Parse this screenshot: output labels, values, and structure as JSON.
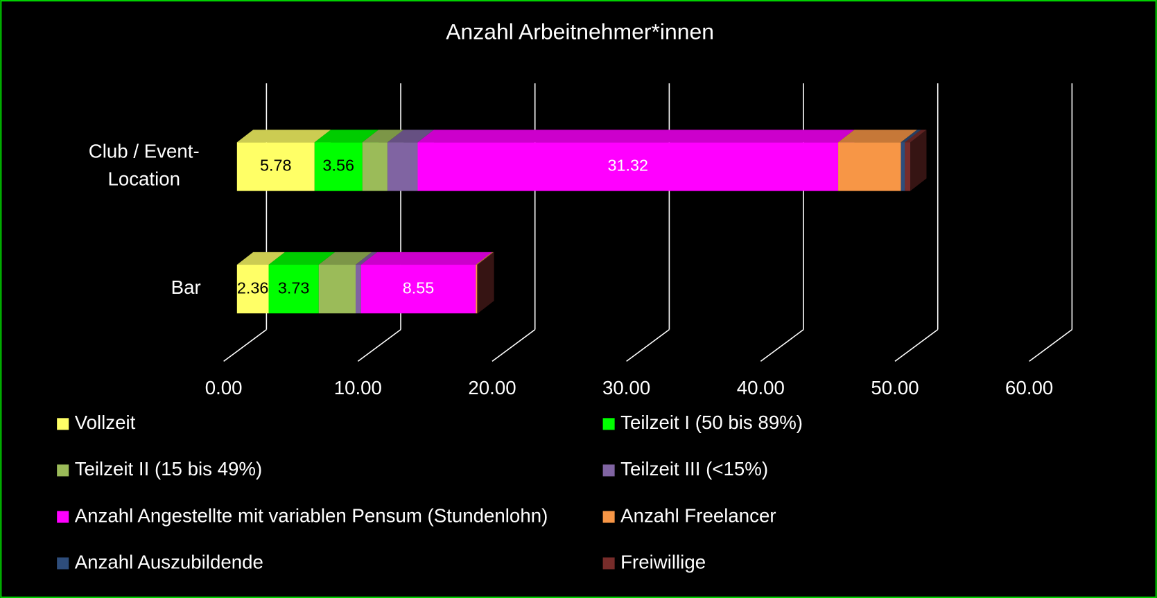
{
  "chart_data": {
    "type": "bar3d",
    "orientation": "horizontal",
    "stacked": true,
    "title": "Anzahl Arbeitnehmer*innen",
    "categories": [
      "Club / Event-\nLocation",
      "Bar"
    ],
    "series": [
      {
        "name": "Vollzeit",
        "color": "#ffff66",
        "values": [
          5.78,
          2.36
        ],
        "show_labels": true,
        "label_color": "#000000"
      },
      {
        "name": "Teilzeit I (50 bis 89%)",
        "color": "#00ff00",
        "values": [
          3.56,
          3.73
        ],
        "show_labels": true,
        "label_color": "#000000"
      },
      {
        "name": "Teilzeit II (15 bis 49%)",
        "color": "#9bbb59",
        "values": [
          1.87,
          2.75
        ]
      },
      {
        "name": "Teilzeit III (<15%)",
        "color": "#8064a2",
        "values": [
          2.25,
          0.4
        ]
      },
      {
        "name": "Anzahl Angestellte mit variablen Pensum (Stundenlohn)",
        "color": "#ff00ff",
        "values": [
          31.32,
          8.55
        ],
        "show_labels": true,
        "label_color": "#ffffff"
      },
      {
        "name": "Anzahl Freelancer",
        "color": "#f79646",
        "values": [
          4.67,
          0.1
        ]
      },
      {
        "name": "Anzahl Auszubildende",
        "color": "#2e4d7b",
        "values": [
          0.3,
          0
        ]
      },
      {
        "name": "Freiwillige",
        "color": "#772c2a",
        "values": [
          0.4,
          0.05
        ]
      }
    ],
    "xlim": [
      0,
      60
    ],
    "xticks": [
      {
        "value": 0,
        "label": "0.00"
      },
      {
        "value": 10,
        "label": "10.00"
      },
      {
        "value": 20,
        "label": "20.00"
      },
      {
        "value": 30,
        "label": "30.00"
      },
      {
        "value": 40,
        "label": "40.00"
      },
      {
        "value": 50,
        "label": "50.00"
      },
      {
        "value": 60,
        "label": "60.00"
      }
    ],
    "grid": true,
    "legend": "bottom"
  }
}
